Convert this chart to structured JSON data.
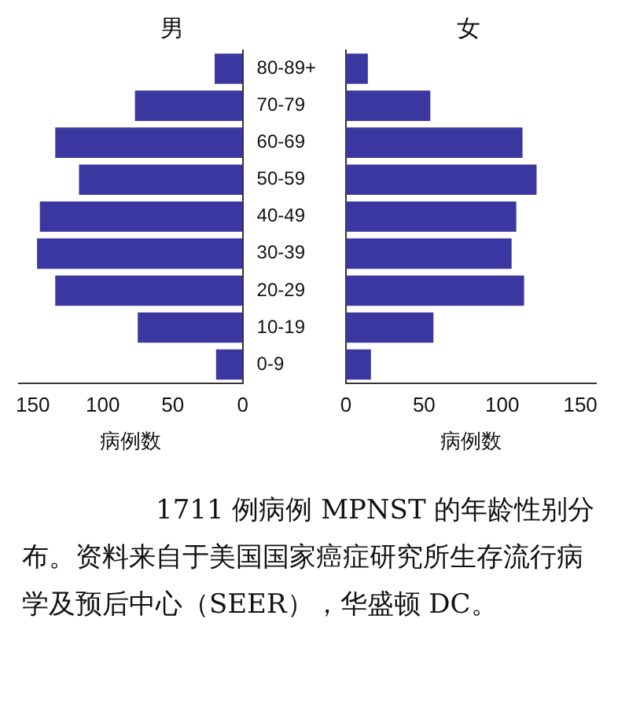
{
  "chart_data": [
    {
      "type": "bar",
      "orientation": "horizontal",
      "title": "男",
      "xlabel": "病例数",
      "categories": [
        "80-89+",
        "70-79",
        "60-69",
        "50-59",
        "40-49",
        "30-39",
        "20-29",
        "10-19",
        "0-9"
      ],
      "values": [
        20,
        77,
        134,
        117,
        145,
        147,
        134,
        75,
        19
      ],
      "color": "#3b37a0",
      "xlim": [
        160,
        0
      ],
      "xticks": [
        0,
        50,
        100,
        150
      ],
      "grid": false,
      "annotations": [
        "1711 例病例 MPNST 的年龄性别分布。资料来自于美国国家癌症研究所生存流行病学及预后中心（SEER），华盛顿 DC。"
      ]
    },
    {
      "type": "bar",
      "orientation": "horizontal",
      "title": "女",
      "xlabel": "病例数",
      "categories": [
        null,
        null,
        null,
        null,
        null,
        null,
        null,
        null,
        null
      ],
      "values": [
        14,
        54,
        113,
        122,
        109,
        106,
        114,
        56,
        16
      ],
      "color": "#3b37a0",
      "xlim": [
        0,
        160
      ],
      "xticks": [
        0,
        50,
        100,
        150
      ],
      "grid": false,
      "tick_labels": "x"
    }
  ]
}
